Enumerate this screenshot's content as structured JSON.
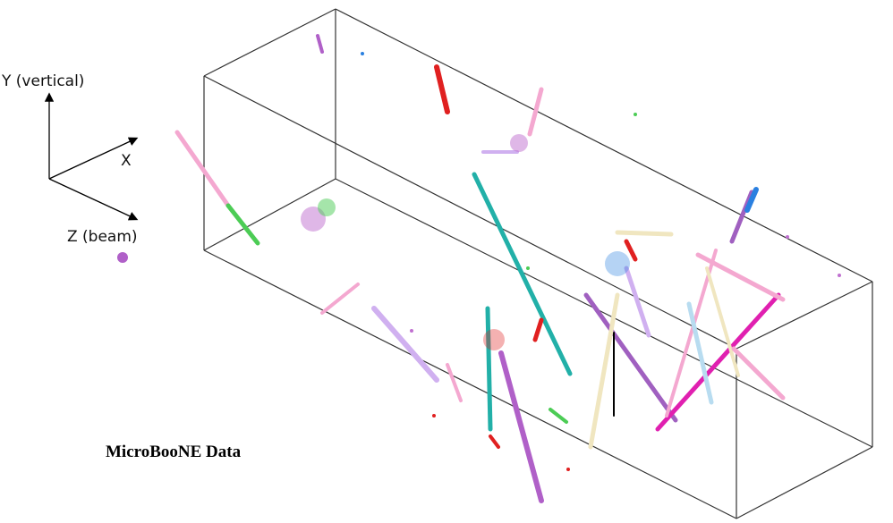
{
  "axes": {
    "y_label": "Y (vertical)",
    "x_label": "X",
    "z_label": "Z (beam)"
  },
  "caption": "MicroBooNE Data"
}
